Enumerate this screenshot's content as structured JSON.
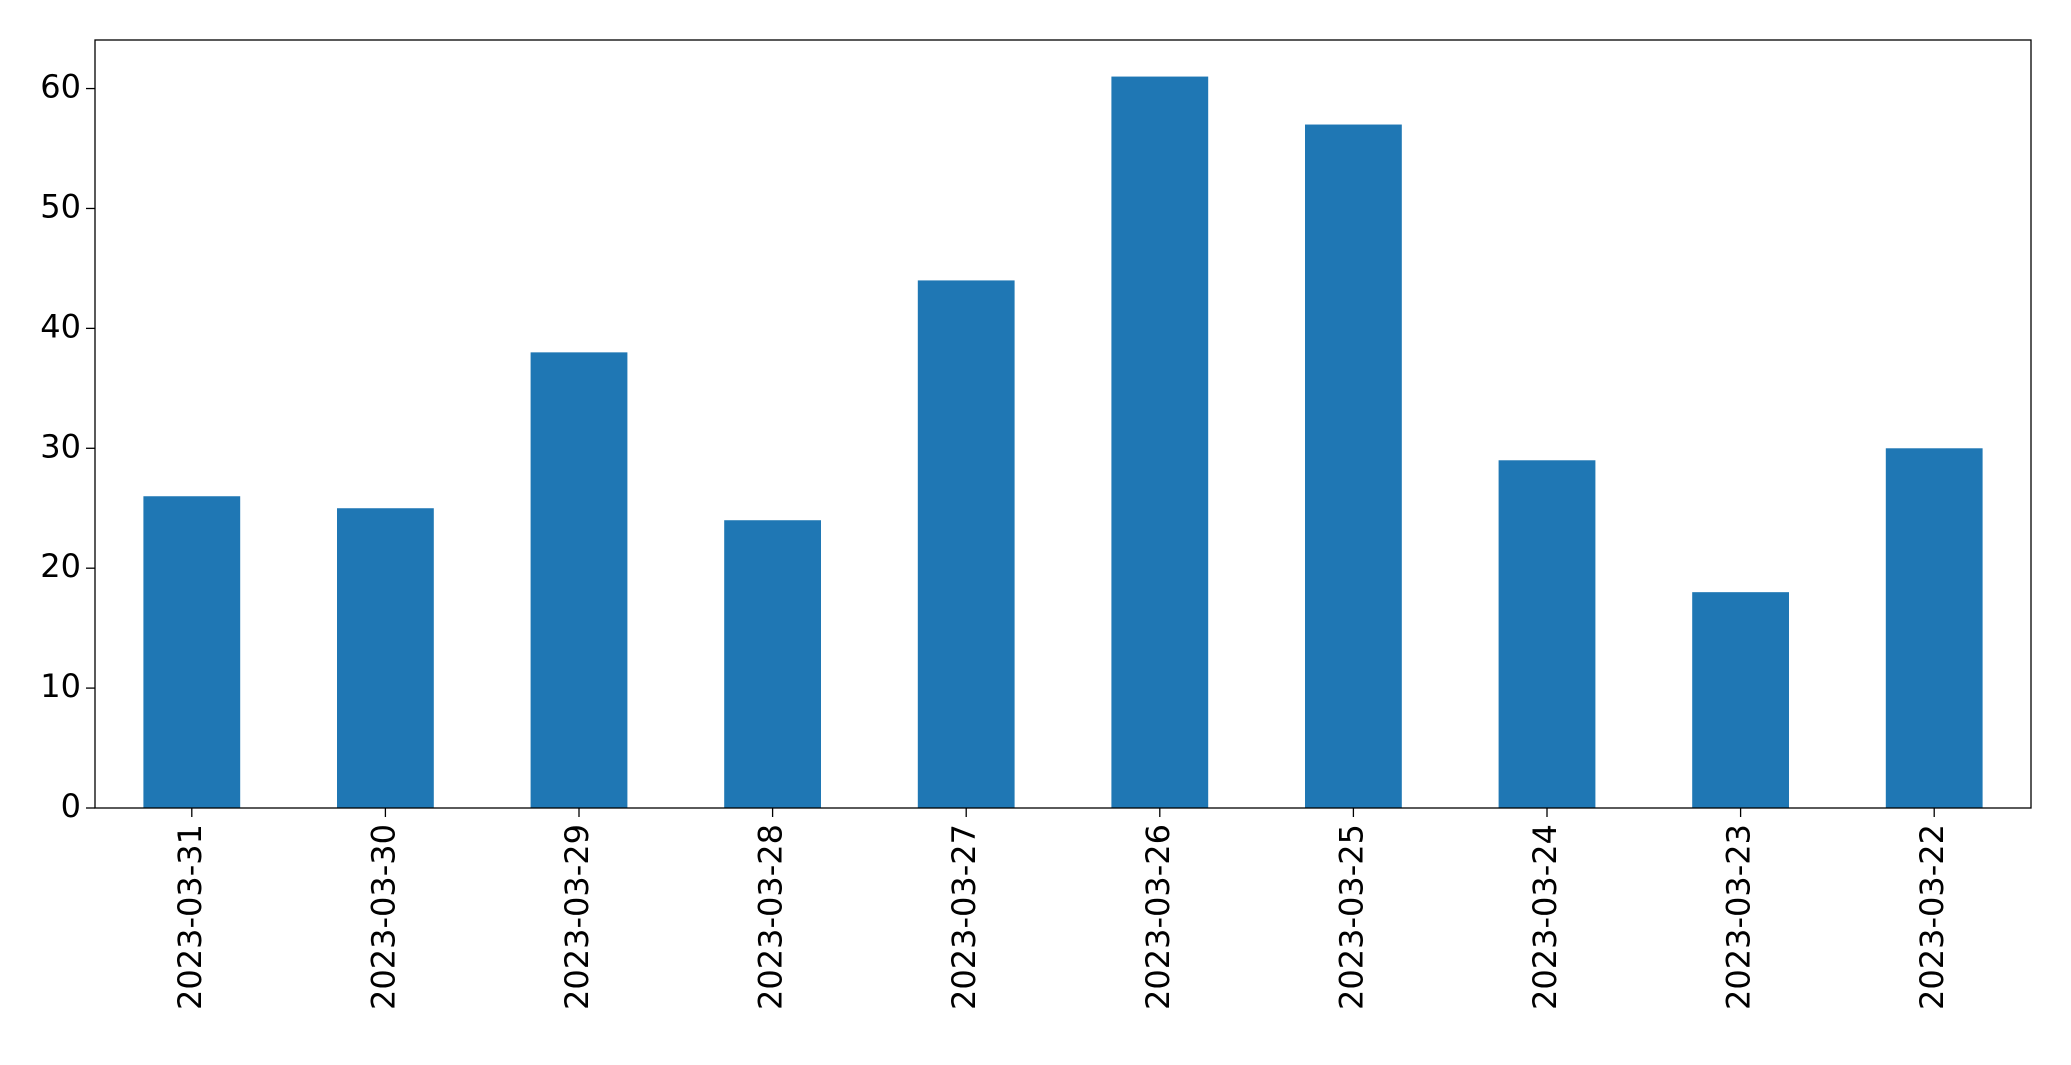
{
  "chart_data": {
    "type": "bar",
    "categories": [
      "2023-03-31",
      "2023-03-30",
      "2023-03-29",
      "2023-03-28",
      "2023-03-27",
      "2023-03-26",
      "2023-03-25",
      "2023-03-24",
      "2023-03-23",
      "2023-03-22"
    ],
    "values": [
      26,
      25,
      38,
      24,
      44,
      61,
      57,
      29,
      18,
      30
    ],
    "color": "#1f77b4",
    "ylim": [
      0,
      64.05
    ],
    "yticks": [
      0,
      10,
      20,
      30,
      40,
      50,
      60
    ],
    "grid": false
  }
}
